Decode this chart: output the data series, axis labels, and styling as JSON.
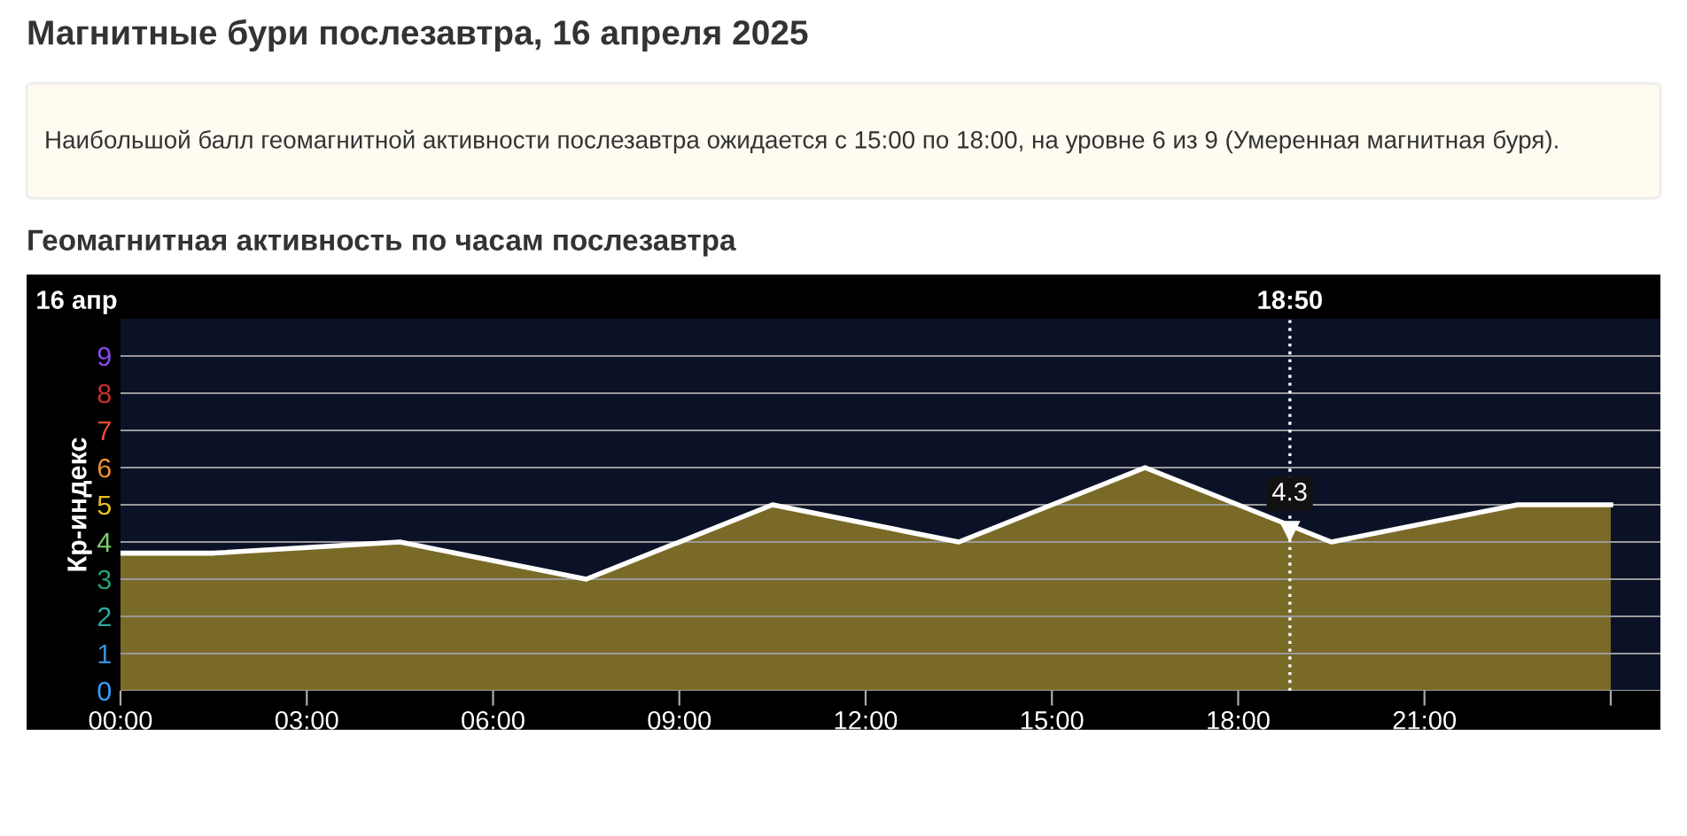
{
  "chart_data": {
    "type": "area",
    "title": "Магнитные бури послезавтра, 16 апреля 2025",
    "subtitle": "Геомагнитная активность по часам послезавтра",
    "annotations": [
      "Наибольшой балл геомагнитной активности послезавтра ожидается с 15:00 по 18:00, на уровне 6 из 9 (Умеренная магнитная буря).",
      "16 апр",
      "18:50",
      {
        "text": "4.3",
        "x": 18.83,
        "y": 4.3
      }
    ],
    "ylabel": "Кр-индекс",
    "x": [
      0,
      1.5,
      4.5,
      7.5,
      10.5,
      13.5,
      16.5,
      19.5,
      22.5,
      24
    ],
    "series": [
      {
        "color": "#ffffff",
        "values": [
          3.7,
          3.7,
          4,
          3,
          5,
          4,
          6,
          4,
          5,
          5
        ]
      }
    ],
    "xlim": [
      0,
      24.8
    ],
    "xticks": [
      {
        "value": 0,
        "label": "00:00"
      },
      {
        "value": 3,
        "label": "03:00"
      },
      {
        "value": 6,
        "label": "06:00"
      },
      {
        "value": 9,
        "label": "09:00"
      },
      {
        "value": 12,
        "label": "12:00"
      },
      {
        "value": 15,
        "label": "15:00"
      },
      {
        "value": 18,
        "label": "18:00"
      },
      {
        "value": 21,
        "label": "21:00"
      },
      {
        "value": 24,
        "label": null
      }
    ],
    "ylim": [
      0,
      10
    ],
    "yticks": [
      0,
      1,
      2,
      3,
      4,
      5,
      6,
      7,
      8,
      9
    ],
    "ref_lines": [
      {
        "axis": "x",
        "value": 18.8333,
        "color": "#ffffff",
        "line_style": "dotted"
      }
    ],
    "grid": "y"
  }
}
